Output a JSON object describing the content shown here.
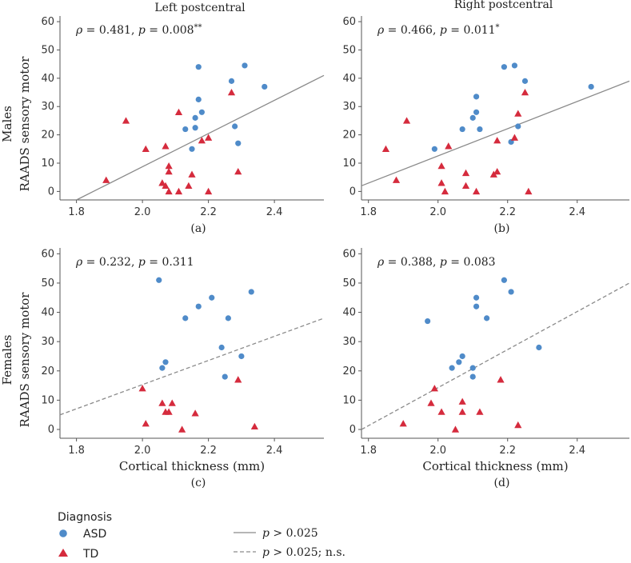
{
  "colors": {
    "asd": "#4f8bc9",
    "td": "#d52b3d",
    "line": "#8a8a8a",
    "axis": "#555555"
  },
  "row_labels": {
    "males": "Males",
    "females": "Females",
    "ylabel": "RAADS sensory motor"
  },
  "legend": {
    "title": "Diagnosis",
    "asd": "ASD",
    "td": "TD",
    "solid_p": "p",
    "solid_text": " > 0.025",
    "dashed_p": "p",
    "dashed_text": " > 0.025; n.s."
  },
  "chart_data": [
    {
      "type": "scatter",
      "id": "a",
      "panel_label": "(a)",
      "title": "Left postcentral",
      "rho_sym": "ρ",
      "rho_text": " = 0.481, ",
      "p_sym": "p",
      "p_text": " = 0.008",
      "sig": "**",
      "xlabel": "",
      "ylabel": "RAADS sensory motor",
      "xlim": [
        1.75,
        2.55
      ],
      "ylim": [
        -3,
        62
      ],
      "xticks": [
        "1.8",
        "2.0",
        "2.2",
        "2.4"
      ],
      "yticks": [
        "0",
        "10",
        "20",
        "30",
        "40",
        "50",
        "60"
      ],
      "fit": {
        "style": "solid",
        "x": [
          1.8,
          2.55
        ],
        "y": [
          -3,
          41
        ]
      },
      "series": [
        {
          "name": "ASD",
          "marker": "circle",
          "x": [
            2.17,
            2.31,
            2.27,
            2.37,
            2.17,
            2.13,
            2.16,
            2.18,
            2.15,
            2.28,
            2.29,
            2.16
          ],
          "y": [
            44,
            44.5,
            39,
            37,
            32.5,
            22,
            26,
            28,
            15,
            23,
            17,
            22.5
          ]
        },
        {
          "name": "TD",
          "marker": "triangle",
          "x": [
            1.89,
            1.95,
            2.01,
            2.07,
            2.08,
            2.08,
            2.08,
            2.06,
            2.07,
            2.11,
            2.11,
            2.14,
            2.15,
            2.18,
            2.2,
            2.2,
            2.27,
            2.29
          ],
          "y": [
            4,
            25,
            15,
            16,
            9,
            7,
            0,
            3,
            2,
            28,
            0,
            2,
            6,
            18,
            19,
            0,
            35,
            7
          ]
        }
      ]
    },
    {
      "type": "scatter",
      "id": "b",
      "panel_label": "(b)",
      "title": "Right postcentral",
      "rho_sym": "ρ",
      "rho_text": " = 0.466, ",
      "p_sym": "p",
      "p_text": " = 0.011",
      "sig": "*",
      "xlabel": "",
      "ylabel": "",
      "xlim": [
        1.78,
        2.55
      ],
      "ylim": [
        -3,
        62
      ],
      "xticks": [
        "1.8",
        "2.0",
        "2.2",
        "2.4"
      ],
      "yticks": [
        "0",
        "10",
        "20",
        "30",
        "40",
        "50",
        "60"
      ],
      "fit": {
        "style": "solid",
        "x": [
          1.78,
          2.55
        ],
        "y": [
          2,
          39
        ]
      },
      "series": [
        {
          "name": "ASD",
          "marker": "circle",
          "x": [
            1.99,
            2.07,
            2.1,
            2.11,
            2.11,
            2.12,
            2.19,
            2.22,
            2.25,
            2.44,
            2.21,
            2.23
          ],
          "y": [
            15,
            22,
            26,
            28,
            33.5,
            22,
            44,
            44.5,
            39,
            37,
            17.5,
            23
          ]
        },
        {
          "name": "TD",
          "marker": "triangle",
          "x": [
            1.85,
            1.88,
            1.91,
            2.01,
            2.01,
            2.02,
            2.03,
            2.08,
            2.08,
            2.11,
            2.16,
            2.17,
            2.17,
            2.22,
            2.23,
            2.25,
            2.26
          ],
          "y": [
            15,
            4,
            25,
            9,
            3,
            0,
            16,
            6.5,
            2,
            0,
            6,
            7,
            18,
            19,
            27.5,
            35,
            0
          ]
        }
      ]
    },
    {
      "type": "scatter",
      "id": "c",
      "panel_label": "(c)",
      "title": "",
      "rho_sym": "ρ",
      "rho_text": " = 0.232, ",
      "p_sym": "p",
      "p_text": " = 0.311",
      "sig": "",
      "xlabel": "Cortical thickness (mm)",
      "ylabel": "RAADS sensory motor",
      "xlim": [
        1.75,
        2.55
      ],
      "ylim": [
        -3,
        62
      ],
      "xticks": [
        "1.8",
        "2.0",
        "2.2",
        "2.4"
      ],
      "yticks": [
        "0",
        "10",
        "20",
        "30",
        "40",
        "50",
        "60"
      ],
      "fit": {
        "style": "dashed",
        "x": [
          1.75,
          2.55
        ],
        "y": [
          5,
          38
        ]
      },
      "series": [
        {
          "name": "ASD",
          "marker": "circle",
          "x": [
            2.05,
            2.17,
            2.21,
            2.13,
            2.26,
            2.33,
            2.24,
            2.3,
            2.07,
            2.06,
            2.25
          ],
          "y": [
            51,
            42,
            45,
            38,
            38,
            47,
            28,
            25,
            23,
            21,
            18
          ]
        },
        {
          "name": "TD",
          "marker": "triangle",
          "x": [
            2.0,
            2.01,
            2.06,
            2.07,
            2.09,
            2.08,
            2.12,
            2.16,
            2.29,
            2.34
          ],
          "y": [
            14,
            2,
            9,
            6,
            9,
            6,
            0,
            5.5,
            17,
            1
          ]
        }
      ]
    },
    {
      "type": "scatter",
      "id": "d",
      "panel_label": "(d)",
      "title": "",
      "rho_sym": "ρ",
      "rho_text": " = 0.388, ",
      "p_sym": "p",
      "p_text": " = 0.083",
      "sig": "",
      "xlabel": "Cortical thickness (mm)",
      "ylabel": "",
      "xlim": [
        1.78,
        2.55
      ],
      "ylim": [
        -3,
        62
      ],
      "xticks": [
        "1.8",
        "2.0",
        "2.2",
        "2.4"
      ],
      "yticks": [
        "0",
        "10",
        "20",
        "30",
        "40",
        "50",
        "60"
      ],
      "fit": {
        "style": "dashed",
        "x": [
          1.78,
          2.55
        ],
        "y": [
          0,
          50
        ]
      },
      "series": [
        {
          "name": "ASD",
          "marker": "circle",
          "x": [
            1.97,
            2.04,
            2.07,
            2.06,
            2.1,
            2.11,
            2.11,
            2.14,
            2.19,
            2.21,
            2.29,
            2.1
          ],
          "y": [
            37,
            21,
            25,
            23,
            18,
            42,
            45,
            38,
            51,
            47,
            28,
            21
          ]
        },
        {
          "name": "TD",
          "marker": "triangle",
          "x": [
            1.9,
            1.98,
            1.99,
            2.01,
            2.05,
            2.07,
            2.07,
            2.12,
            2.18,
            2.23
          ],
          "y": [
            2,
            9,
            14,
            6,
            0,
            9.5,
            6,
            6,
            17,
            1.5
          ]
        }
      ]
    }
  ]
}
